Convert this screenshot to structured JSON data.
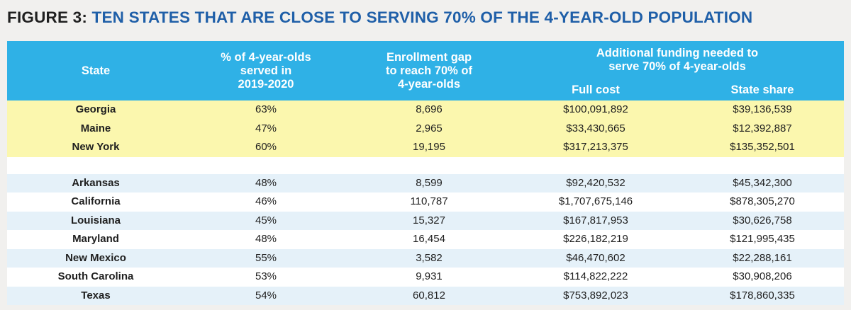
{
  "title": {
    "lead": "FIGURE 3:",
    "main": "TEN STATES THAT ARE CLOSE TO SERVING 70% OF THE 4-YEAR-OLD POPULATION"
  },
  "table": {
    "headers": {
      "state": "State",
      "served_line1": "% of 4-year-olds",
      "served_line2": "served in",
      "served_line3": "2019-2020",
      "gap_line1": "Enrollment gap",
      "gap_line2": "to reach 70% of",
      "gap_line3": "4-year-olds",
      "funding_line1": "Additional funding needed to",
      "funding_line2": "serve 70% of 4-year-olds",
      "full_cost": "Full cost",
      "state_share": "State share"
    },
    "highlighted_rows": [
      {
        "state": "Georgia",
        "served": "63%",
        "gap": "8,696",
        "full_cost": "$100,091,892",
        "state_share": "$39,136,539"
      },
      {
        "state": "Maine",
        "served": "47%",
        "gap": "2,965",
        "full_cost": "$33,430,665",
        "state_share": "$12,392,887"
      },
      {
        "state": "New York",
        "served": "60%",
        "gap": "19,195",
        "full_cost": "$317,213,375",
        "state_share": "$135,352,501"
      }
    ],
    "rows": [
      {
        "state": "Arkansas",
        "served": "48%",
        "gap": "8,599",
        "full_cost": "$92,420,532",
        "state_share": "$45,342,300"
      },
      {
        "state": "California",
        "served": "46%",
        "gap": "110,787",
        "full_cost": "$1,707,675,146",
        "state_share": "$878,305,270"
      },
      {
        "state": "Louisiana",
        "served": "45%",
        "gap": "15,327",
        "full_cost": "$167,817,953",
        "state_share": "$30,626,758"
      },
      {
        "state": "Maryland",
        "served": "48%",
        "gap": "16,454",
        "full_cost": "$226,182,219",
        "state_share": "$121,995,435"
      },
      {
        "state": "New Mexico",
        "served": "55%",
        "gap": "3,582",
        "full_cost": "$46,470,602",
        "state_share": "$22,288,161"
      },
      {
        "state": "South Carolina",
        "served": "53%",
        "gap": "9,931",
        "full_cost": "$114,822,222",
        "state_share": "$30,908,206"
      },
      {
        "state": "Texas",
        "served": "54%",
        "gap": "60,812",
        "full_cost": "$753,892,023",
        "state_share": "$178,860,335"
      }
    ]
  },
  "colors": {
    "header_bg": "#2fb1e6",
    "highlight_bg": "#fbf7ae",
    "alt_row_bg": "#e5f1f9",
    "title_accent": "#1f5fa8"
  }
}
